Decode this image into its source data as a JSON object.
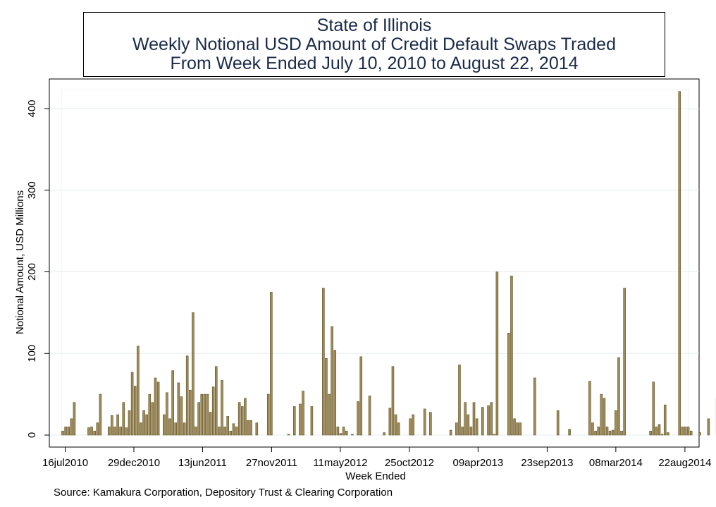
{
  "chart_data": {
    "type": "bar",
    "title_lines": [
      "State of Illinois",
      "Weekly Notional USD Amount of Credit Default Swaps Traded",
      "From Week Ended July 10, 2010 to August 22, 2014"
    ],
    "xlabel": "Week Ended",
    "ylabel": "Notional Amount, USD Millions",
    "ylim": [
      0,
      430
    ],
    "yticks": [
      0,
      100,
      200,
      300,
      400
    ],
    "xlim": [
      "2010-07-10",
      "2014-08-29"
    ],
    "xticks": [
      {
        "date": "2010-07-16",
        "label": "16jul2010"
      },
      {
        "date": "2010-12-29",
        "label": "29dec2010"
      },
      {
        "date": "2011-06-13",
        "label": "13jun2011"
      },
      {
        "date": "2011-11-27",
        "label": "27nov2011"
      },
      {
        "date": "2012-05-11",
        "label": "11may2012"
      },
      {
        "date": "2012-10-25",
        "label": "25oct2012"
      },
      {
        "date": "2013-04-09",
        "label": "09apr2013"
      },
      {
        "date": "2013-09-23",
        "label": "23sep2013"
      },
      {
        "date": "2014-03-08",
        "label": "08mar2014"
      },
      {
        "date": "2014-08-22",
        "label": "22aug2014"
      }
    ],
    "grid": true,
    "bar_color": "#a08c5a",
    "bar_edge_color": "#5e4e22",
    "bars": [
      {
        "week": "2010-07-10",
        "value": 5
      },
      {
        "week": "2010-07-17",
        "value": 10
      },
      {
        "week": "2010-07-24",
        "value": 10
      },
      {
        "week": "2010-07-31",
        "value": 20
      },
      {
        "week": "2010-08-07",
        "value": 40
      },
      {
        "week": "2010-09-11",
        "value": 9
      },
      {
        "week": "2010-09-18",
        "value": 10
      },
      {
        "week": "2010-09-25",
        "value": 5
      },
      {
        "week": "2010-10-02",
        "value": 15
      },
      {
        "week": "2010-10-09",
        "value": 50
      },
      {
        "week": "2010-10-30",
        "value": 10
      },
      {
        "week": "2010-11-06",
        "value": 24
      },
      {
        "week": "2010-11-13",
        "value": 10
      },
      {
        "week": "2010-11-20",
        "value": 25
      },
      {
        "week": "2010-11-27",
        "value": 10
      },
      {
        "week": "2010-12-04",
        "value": 40
      },
      {
        "week": "2010-12-11",
        "value": 9
      },
      {
        "week": "2010-12-18",
        "value": 30
      },
      {
        "week": "2010-12-25",
        "value": 77
      },
      {
        "week": "2011-01-01",
        "value": 60
      },
      {
        "week": "2011-01-08",
        "value": 109
      },
      {
        "week": "2011-01-15",
        "value": 15
      },
      {
        "week": "2011-01-22",
        "value": 30
      },
      {
        "week": "2011-01-29",
        "value": 25
      },
      {
        "week": "2011-02-05",
        "value": 50
      },
      {
        "week": "2011-02-12",
        "value": 40
      },
      {
        "week": "2011-02-19",
        "value": 70
      },
      {
        "week": "2011-02-26",
        "value": 65
      },
      {
        "week": "2011-03-12",
        "value": 25
      },
      {
        "week": "2011-03-19",
        "value": 52
      },
      {
        "week": "2011-03-26",
        "value": 20
      },
      {
        "week": "2011-04-02",
        "value": 79
      },
      {
        "week": "2011-04-09",
        "value": 15
      },
      {
        "week": "2011-04-16",
        "value": 64
      },
      {
        "week": "2011-04-23",
        "value": 47
      },
      {
        "week": "2011-04-30",
        "value": 15
      },
      {
        "week": "2011-05-07",
        "value": 97
      },
      {
        "week": "2011-05-14",
        "value": 55
      },
      {
        "week": "2011-05-21",
        "value": 150
      },
      {
        "week": "2011-05-28",
        "value": 10
      },
      {
        "week": "2011-06-04",
        "value": 40
      },
      {
        "week": "2011-06-11",
        "value": 50
      },
      {
        "week": "2011-06-18",
        "value": 50
      },
      {
        "week": "2011-06-25",
        "value": 50
      },
      {
        "week": "2011-07-02",
        "value": 28
      },
      {
        "week": "2011-07-09",
        "value": 59
      },
      {
        "week": "2011-07-16",
        "value": 84
      },
      {
        "week": "2011-07-23",
        "value": 10
      },
      {
        "week": "2011-07-30",
        "value": 67
      },
      {
        "week": "2011-08-06",
        "value": 10
      },
      {
        "week": "2011-08-13",
        "value": 23
      },
      {
        "week": "2011-08-20",
        "value": 5
      },
      {
        "week": "2011-08-27",
        "value": 14
      },
      {
        "week": "2011-09-03",
        "value": 10
      },
      {
        "week": "2011-09-10",
        "value": 40
      },
      {
        "week": "2011-09-17",
        "value": 35
      },
      {
        "week": "2011-09-24",
        "value": 45
      },
      {
        "week": "2011-10-01",
        "value": 18
      },
      {
        "week": "2011-10-08",
        "value": 18
      },
      {
        "week": "2011-10-22",
        "value": 15
      },
      {
        "week": "2011-11-19",
        "value": 50
      },
      {
        "week": "2011-11-26",
        "value": 175
      },
      {
        "week": "2012-01-07",
        "value": 1
      },
      {
        "week": "2012-01-21",
        "value": 35
      },
      {
        "week": "2012-02-04",
        "value": 38
      },
      {
        "week": "2012-02-11",
        "value": 54
      },
      {
        "week": "2012-03-03",
        "value": 35
      },
      {
        "week": "2012-03-31",
        "value": 180
      },
      {
        "week": "2012-04-07",
        "value": 94
      },
      {
        "week": "2012-04-14",
        "value": 50
      },
      {
        "week": "2012-04-21",
        "value": 133
      },
      {
        "week": "2012-04-28",
        "value": 104
      },
      {
        "week": "2012-05-05",
        "value": 10
      },
      {
        "week": "2012-05-12",
        "value": 2
      },
      {
        "week": "2012-05-19",
        "value": 10
      },
      {
        "week": "2012-05-26",
        "value": 5
      },
      {
        "week": "2012-06-09",
        "value": 1
      },
      {
        "week": "2012-06-23",
        "value": 41
      },
      {
        "week": "2012-06-30",
        "value": 96
      },
      {
        "week": "2012-07-21",
        "value": 48
      },
      {
        "week": "2012-08-25",
        "value": 3
      },
      {
        "week": "2012-09-08",
        "value": 33
      },
      {
        "week": "2012-09-15",
        "value": 84
      },
      {
        "week": "2012-09-22",
        "value": 25
      },
      {
        "week": "2012-09-29",
        "value": 15
      },
      {
        "week": "2012-10-27",
        "value": 20
      },
      {
        "week": "2012-11-03",
        "value": 25
      },
      {
        "week": "2012-12-01",
        "value": 32
      },
      {
        "week": "2012-12-15",
        "value": 28
      },
      {
        "week": "2013-02-02",
        "value": 6
      },
      {
        "week": "2013-02-16",
        "value": 15
      },
      {
        "week": "2013-02-23",
        "value": 86
      },
      {
        "week": "2013-03-02",
        "value": 10
      },
      {
        "week": "2013-03-09",
        "value": 40
      },
      {
        "week": "2013-03-16",
        "value": 25
      },
      {
        "week": "2013-03-23",
        "value": 10
      },
      {
        "week": "2013-03-30",
        "value": 40
      },
      {
        "week": "2013-04-06",
        "value": 20
      },
      {
        "week": "2013-04-20",
        "value": 34
      },
      {
        "week": "2013-05-04",
        "value": 36
      },
      {
        "week": "2013-05-11",
        "value": 40
      },
      {
        "week": "2013-05-18",
        "value": 1
      },
      {
        "week": "2013-05-25",
        "value": 200
      },
      {
        "week": "2013-06-22",
        "value": 125
      },
      {
        "week": "2013-06-29",
        "value": 195
      },
      {
        "week": "2013-07-06",
        "value": 20
      },
      {
        "week": "2013-07-13",
        "value": 15
      },
      {
        "week": "2013-07-20",
        "value": 15
      },
      {
        "week": "2013-08-24",
        "value": 70
      },
      {
        "week": "2013-10-19",
        "value": 30
      },
      {
        "week": "2013-11-16",
        "value": 7
      },
      {
        "week": "2014-01-04",
        "value": 66
      },
      {
        "week": "2014-01-11",
        "value": 15
      },
      {
        "week": "2014-01-18",
        "value": 5
      },
      {
        "week": "2014-01-25",
        "value": 10
      },
      {
        "week": "2014-02-01",
        "value": 50
      },
      {
        "week": "2014-02-08",
        "value": 45
      },
      {
        "week": "2014-02-15",
        "value": 10
      },
      {
        "week": "2014-02-22",
        "value": 5
      },
      {
        "week": "2014-03-01",
        "value": 6
      },
      {
        "week": "2014-03-08",
        "value": 30
      },
      {
        "week": "2014-03-15",
        "value": 95
      },
      {
        "week": "2014-03-22",
        "value": 5
      },
      {
        "week": "2014-03-29",
        "value": 180
      },
      {
        "week": "2014-05-31",
        "value": 5
      },
      {
        "week": "2014-06-07",
        "value": 65
      },
      {
        "week": "2014-06-14",
        "value": 10
      },
      {
        "week": "2014-06-21",
        "value": 13
      },
      {
        "week": "2014-06-28",
        "value": 1
      },
      {
        "week": "2014-07-05",
        "value": 37
      },
      {
        "week": "2014-07-12",
        "value": 3
      },
      {
        "week": "2014-08-09",
        "value": 421
      },
      {
        "week": "2014-08-16",
        "value": 10
      },
      {
        "week": "2014-08-23",
        "value": 10
      },
      {
        "week": "2014-08-30",
        "value": 10
      },
      {
        "week": "2014-09-06",
        "value": 5
      },
      {
        "week": "2014-09-27",
        "value": 3
      },
      {
        "week": "2014-10-18",
        "value": 20
      },
      {
        "week": "2014-11-08",
        "value": 45
      }
    ]
  },
  "source": "Source: Kamakura Corporation, Depository Trust & Clearing Corporation"
}
